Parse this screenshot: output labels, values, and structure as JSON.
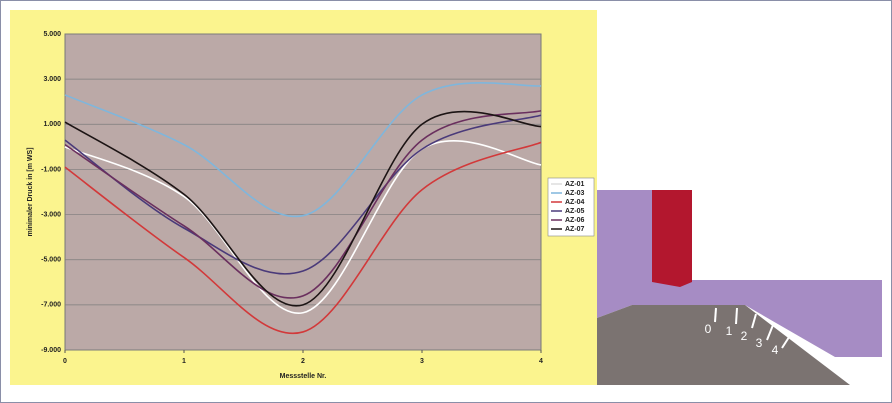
{
  "chart_data": {
    "type": "line",
    "x_label": "Messstelle Nr.",
    "y_label": "minimaler Druck in [m WS]",
    "x": [
      0,
      1,
      2,
      3,
      4
    ],
    "xlim": [
      0,
      4
    ],
    "xticks": [
      0,
      1,
      2,
      3,
      4
    ],
    "ylim": [
      -9,
      5
    ],
    "yticks": [
      {
        "value": -9,
        "label": "-9.000"
      },
      {
        "value": -7,
        "label": "-7.000"
      },
      {
        "value": -5,
        "label": "-5.000"
      },
      {
        "value": -3,
        "label": "-3.000"
      },
      {
        "value": -1,
        "label": "-1.000"
      },
      {
        "value": 1,
        "label": "1.000"
      },
      {
        "value": 3,
        "label": "3.000"
      },
      {
        "value": 5,
        "label": "5.000"
      }
    ],
    "grid": true,
    "legend": "right",
    "series": [
      {
        "name": "AZ-01",
        "color": "#ffffff",
        "values": [
          0,
          -2.2,
          -7.35,
          -0.1,
          -0.8
        ]
      },
      {
        "name": "AZ-03",
        "color": "#7fb6dc",
        "values": [
          2.3,
          0.1,
          -3.05,
          2.3,
          2.7
        ]
      },
      {
        "name": "AZ-04",
        "color": "#d2393a",
        "values": [
          -0.9,
          -4.9,
          -8.2,
          -1.9,
          0.2
        ]
      },
      {
        "name": "AZ-05",
        "color": "#4a3a7a",
        "values": [
          0.3,
          -3.6,
          -5.5,
          -0.1,
          1.4
        ]
      },
      {
        "name": "AZ-06",
        "color": "#6a2f5e",
        "values": [
          0.1,
          -3.5,
          -6.6,
          0.3,
          1.6
        ]
      },
      {
        "name": "AZ-07",
        "color": "#1c1414",
        "values": [
          1.1,
          -2.1,
          -7.0,
          1.0,
          0.9
        ]
      }
    ]
  },
  "diagram": {
    "labels": [
      "0",
      "1",
      "2",
      "3",
      "4"
    ]
  }
}
